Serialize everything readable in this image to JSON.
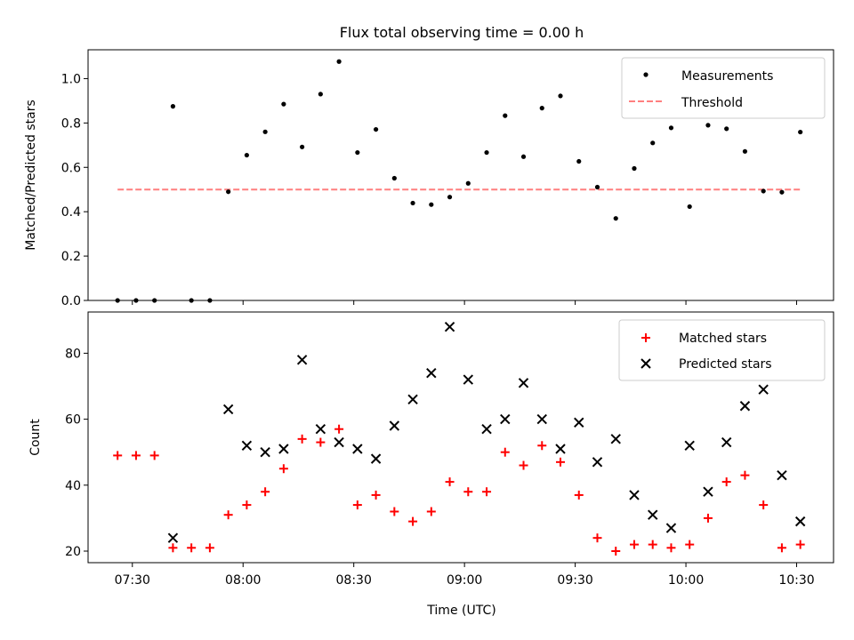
{
  "chart_data": [
    {
      "type": "scatter",
      "title": "Flux total observing time = 0.00 h",
      "xlabel": "",
      "ylabel": "Matched/Predicted stars",
      "xlim": [
        "07:18",
        "10:40"
      ],
      "ylim": [
        0,
        1.13
      ],
      "yticks": [
        "0.0",
        "0.2",
        "0.4",
        "0.6",
        "0.8",
        "1.0"
      ],
      "ytick_values": [
        0,
        0.2,
        0.4,
        0.6,
        0.8,
        1.0
      ],
      "legend_position": "top-right",
      "series": [
        {
          "name": "Measurements",
          "marker": "dot",
          "color": "#000000",
          "x": [
            "07:26",
            "07:31",
            "07:36",
            "07:46",
            "07:51",
            "07:56",
            "08:01",
            "08:06",
            "08:11",
            "08:16",
            "08:21",
            "08:26",
            "08:31",
            "08:36",
            "08:41",
            "08:46",
            "08:51",
            "08:56",
            "09:01",
            "09:06",
            "09:11",
            "09:16",
            "09:21",
            "09:26",
            "09:31",
            "09:36",
            "09:41",
            "09:46",
            "09:51",
            "09:56",
            "10:01",
            "10:06",
            "10:11",
            "10:16",
            "10:21",
            "10:26",
            "10:31"
          ],
          "y": [
            0,
            0,
            0,
            0,
            0,
            0.49,
            0.655,
            0.76,
            0.885,
            0.692,
            0.93,
            1.077,
            0.667,
            0.771,
            0.551,
            0.439,
            0.432,
            0.466,
            0.528,
            0.667,
            0.833,
            0.648,
            0.867,
            0.922,
            0.627,
            0.511,
            0.37,
            0.595,
            0.71,
            0.778,
            0.423,
            0.79,
            0.774,
            0.672,
            0.493,
            0.488,
            0.759
          ]
        },
        {
          "name": "Threshold",
          "marker": "dashed-line",
          "color": "#ff7f7f",
          "x": [
            "07:26",
            "10:31"
          ],
          "y": [
            0.5,
            0.5
          ]
        }
      ],
      "extra_point": {
        "x": "07:41",
        "y": 0.875
      }
    },
    {
      "type": "scatter",
      "title": "",
      "xlabel": "Time (UTC)",
      "ylabel": "Count",
      "xlim": [
        "07:18",
        "10:40"
      ],
      "ylim": [
        16.5,
        92.5
      ],
      "xticks": [
        "07:30",
        "08:00",
        "08:30",
        "09:00",
        "09:30",
        "10:00",
        "10:30"
      ],
      "yticks": [
        "20",
        "40",
        "60",
        "80"
      ],
      "ytick_values": [
        20,
        40,
        60,
        80
      ],
      "legend_position": "top-right",
      "series": [
        {
          "name": "Matched stars",
          "marker": "plus",
          "color": "#ff0000",
          "x": [
            "07:26",
            "07:31",
            "07:36",
            "07:41",
            "07:46",
            "07:51",
            "07:56",
            "08:01",
            "08:06",
            "08:11",
            "08:16",
            "08:21",
            "08:26",
            "08:31",
            "08:36",
            "08:41",
            "08:46",
            "08:51",
            "08:56",
            "09:01",
            "09:06",
            "09:11",
            "09:16",
            "09:21",
            "09:26",
            "09:31",
            "09:36",
            "09:41",
            "09:46",
            "09:51",
            "09:56",
            "10:01",
            "10:06",
            "10:11",
            "10:16",
            "10:21",
            "10:26",
            "10:31"
          ],
          "y": [
            49,
            49,
            49,
            21,
            21,
            21,
            31,
            34,
            38,
            45,
            54,
            53,
            57,
            34,
            37,
            32,
            29,
            32,
            41,
            38,
            38,
            50,
            46,
            52,
            47,
            37,
            24,
            20,
            22,
            22,
            21,
            22,
            30,
            41,
            43,
            34,
            21,
            22
          ]
        },
        {
          "name": "Predicted stars",
          "marker": "x",
          "color": "#000000",
          "x": [
            "07:41",
            "07:56",
            "08:01",
            "08:06",
            "08:11",
            "08:16",
            "08:21",
            "08:26",
            "08:31",
            "08:36",
            "08:41",
            "08:46",
            "08:51",
            "08:56",
            "09:01",
            "09:06",
            "09:11",
            "09:16",
            "09:21",
            "09:26",
            "09:31",
            "09:36",
            "09:41",
            "09:46",
            "09:51",
            "09:56",
            "10:01",
            "10:06",
            "10:11",
            "10:16",
            "10:21",
            "10:26",
            "10:31"
          ],
          "y": [
            24,
            63,
            52,
            50,
            51,
            78,
            57,
            53,
            51,
            48,
            58,
            66,
            74,
            88,
            72,
            57,
            60,
            71,
            60,
            51,
            59,
            47,
            54,
            37,
            31,
            27,
            52,
            38,
            53,
            64,
            69,
            43,
            29
          ]
        }
      ]
    }
  ]
}
